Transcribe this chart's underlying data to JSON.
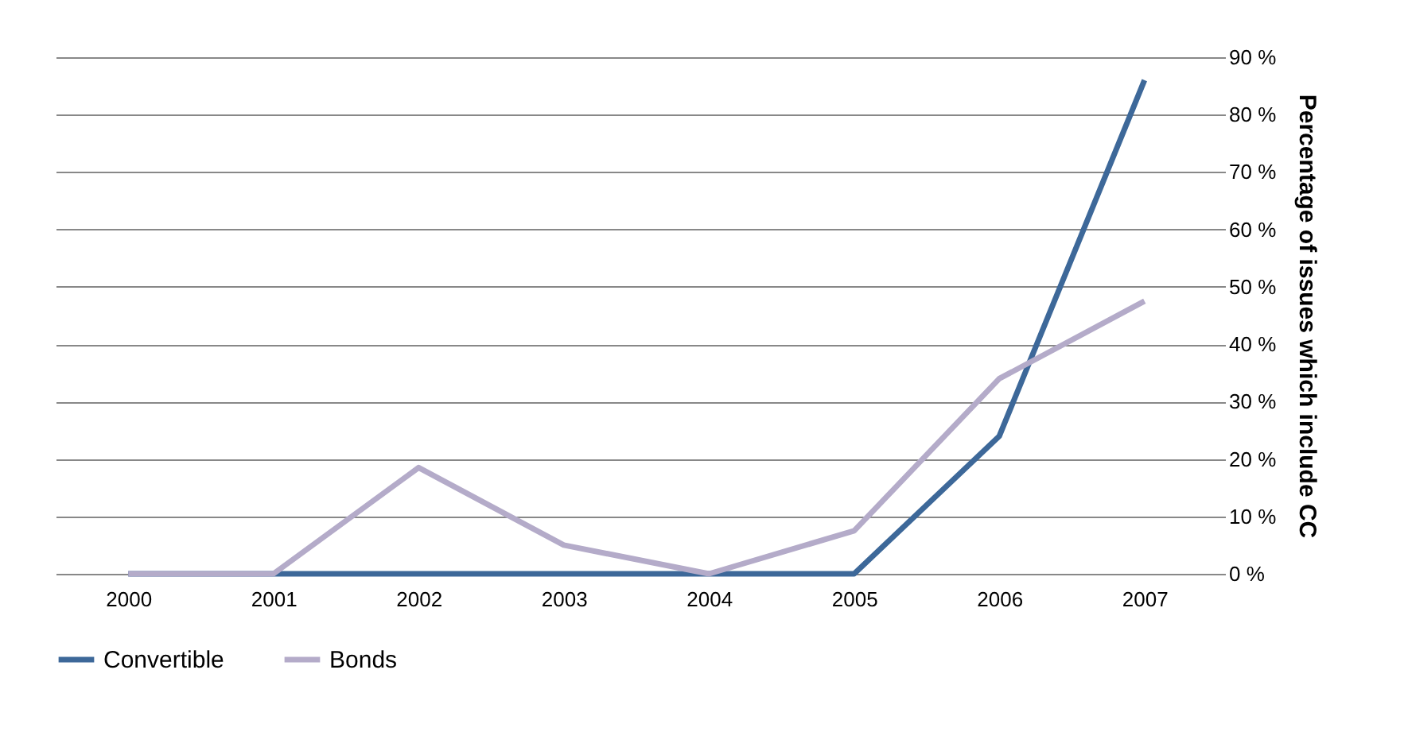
{
  "chart_data": {
    "type": "line",
    "ylabel": "Percentage of issues which include CC",
    "categories": [
      "2000",
      "2001",
      "2002",
      "2003",
      "2004",
      "2005",
      "2006",
      "2007"
    ],
    "series": [
      {
        "name": "Convertible",
        "color": "#3d6899",
        "values": [
          0,
          0,
          0,
          0,
          0,
          0,
          24,
          86
        ]
      },
      {
        "name": "Bonds",
        "color": "#b4abc9",
        "values": [
          0,
          0,
          18.5,
          5,
          0,
          7.5,
          34,
          47.5
        ]
      }
    ],
    "ylim": [
      0,
      90
    ],
    "yticks": [
      {
        "value": 0,
        "label": "0 %"
      },
      {
        "value": 10,
        "label": "10 %"
      },
      {
        "value": 20,
        "label": "20 %"
      },
      {
        "value": 30,
        "label": "30 %"
      },
      {
        "value": 40,
        "label": "40 %"
      },
      {
        "value": 50,
        "label": "50 %"
      },
      {
        "value": 60,
        "label": "60 %"
      },
      {
        "value": 70,
        "label": "70 %"
      },
      {
        "value": 80,
        "label": "80 %"
      },
      {
        "value": 90,
        "label": "90 %"
      }
    ],
    "grid": "y",
    "legend": "bottom",
    "marker": "none",
    "line_style": "solid"
  }
}
